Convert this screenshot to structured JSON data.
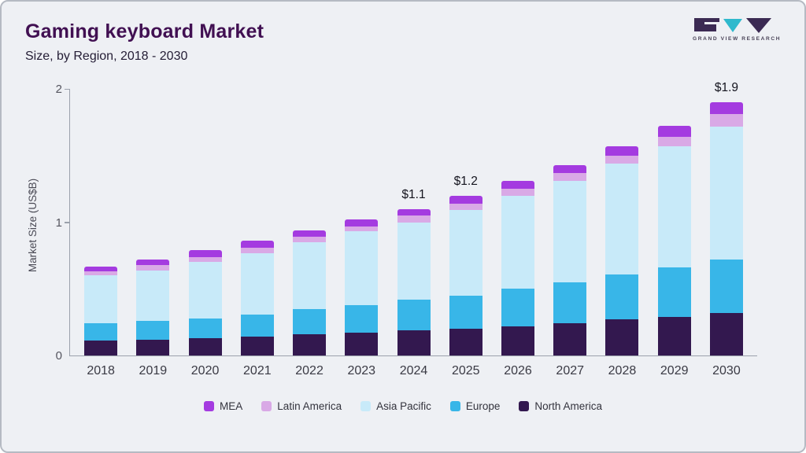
{
  "header": {
    "title": "Gaming keyboard Market",
    "subtitle": "Size, by Region, 2018 - 2030",
    "logo_text": "GRAND VIEW RESEARCH"
  },
  "colors": {
    "background": "#eef0f4",
    "title": "#411052",
    "axis": "#9ba1ac",
    "logo_teal": "#2fb9cd",
    "logo_dark": "#3b2a53"
  },
  "chart_data": {
    "type": "bar",
    "stacked": true,
    "title": "Gaming keyboard Market Size, by Region, 2018 - 2030",
    "ylabel": "Market Size (US$B)",
    "xlabel": "",
    "ylim": [
      0,
      2
    ],
    "yticks": [
      0,
      1,
      2
    ],
    "grid": false,
    "legend_position": "bottom",
    "categories": [
      "2018",
      "2019",
      "2020",
      "2021",
      "2022",
      "2023",
      "2024",
      "2025",
      "2026",
      "2027",
      "2028",
      "2029",
      "2030"
    ],
    "series": [
      {
        "name": "North America",
        "color": "#33184f",
        "values": [
          0.11,
          0.12,
          0.13,
          0.14,
          0.16,
          0.17,
          0.19,
          0.2,
          0.22,
          0.24,
          0.27,
          0.29,
          0.32
        ]
      },
      {
        "name": "Europe",
        "color": "#38b6e8",
        "values": [
          0.13,
          0.14,
          0.15,
          0.17,
          0.19,
          0.21,
          0.23,
          0.25,
          0.28,
          0.31,
          0.34,
          0.37,
          0.4
        ]
      },
      {
        "name": "Asia Pacific",
        "color": "#c8eaf9",
        "values": [
          0.36,
          0.38,
          0.42,
          0.46,
          0.5,
          0.55,
          0.58,
          0.64,
          0.7,
          0.76,
          0.83,
          0.91,
          1.0
        ]
      },
      {
        "name": "Latin America",
        "color": "#d9a9e6",
        "values": [
          0.03,
          0.04,
          0.04,
          0.04,
          0.04,
          0.04,
          0.05,
          0.05,
          0.05,
          0.06,
          0.06,
          0.07,
          0.09
        ]
      },
      {
        "name": "MEA",
        "color": "#a43be0",
        "values": [
          0.04,
          0.04,
          0.05,
          0.05,
          0.05,
          0.05,
          0.05,
          0.06,
          0.06,
          0.06,
          0.07,
          0.08,
          0.09
        ]
      }
    ],
    "legend_order": [
      "MEA",
      "Latin America",
      "Asia Pacific",
      "Europe",
      "North America"
    ],
    "annotations": [
      {
        "category": "2024",
        "text": "$1.1"
      },
      {
        "category": "2025",
        "text": "$1.2"
      },
      {
        "category": "2030",
        "text": "$1.9"
      }
    ]
  }
}
